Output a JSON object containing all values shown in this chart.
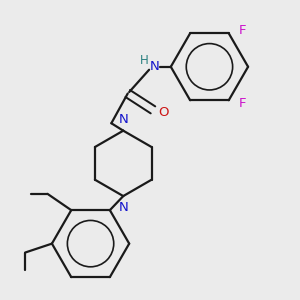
{
  "bg_color": "#ebebeb",
  "bond_color": "#1a1a1a",
  "N_color": "#1414cc",
  "O_color": "#cc1414",
  "F_color": "#cc14cc",
  "H_color": "#2a8080",
  "line_width": 1.6,
  "figsize": [
    3.0,
    3.0
  ],
  "dpi": 100,
  "xlim": [
    0,
    10
  ],
  "ylim": [
    0,
    10
  ]
}
